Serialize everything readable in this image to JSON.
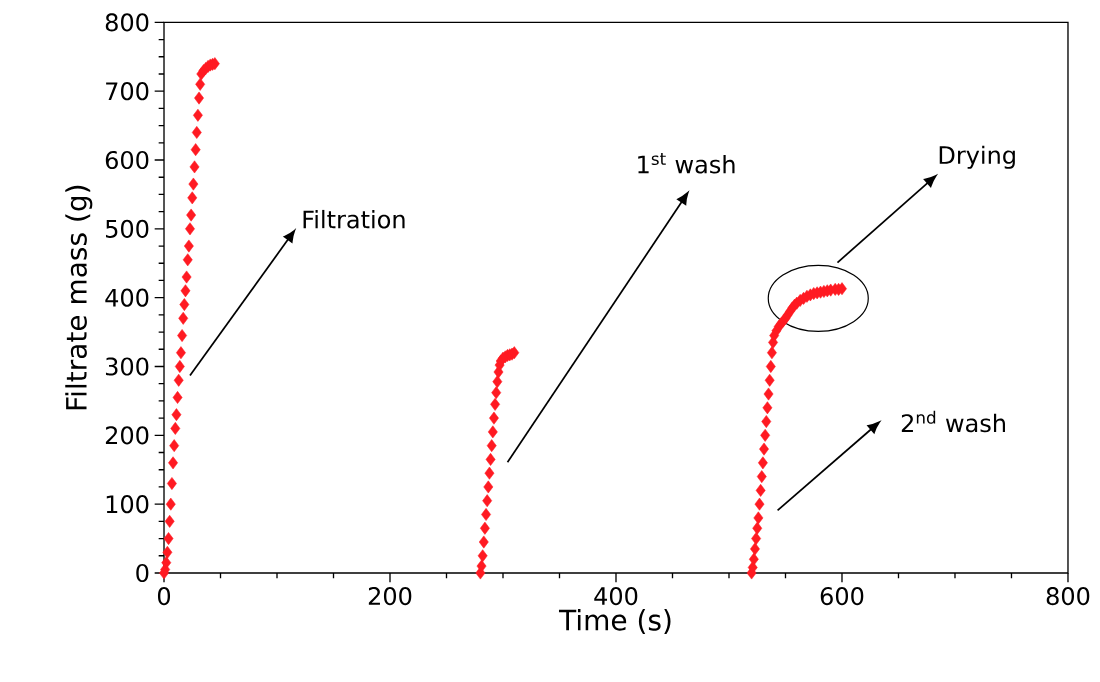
{
  "chart_data": {
    "type": "scatter",
    "xlabel": "Time (s)",
    "ylabel": "Filtrate mass (g)",
    "xlim": [
      0,
      800
    ],
    "ylim": [
      0,
      800
    ],
    "xticks": [
      0,
      200,
      400,
      600,
      800
    ],
    "yticks": [
      0,
      100,
      200,
      300,
      400,
      500,
      600,
      700,
      800
    ],
    "grid": false,
    "marker": "diamond",
    "series": [
      {
        "color": "#ff1a22",
        "x": [
          0,
          1,
          2,
          3,
          4,
          5,
          6,
          7,
          8,
          9,
          10,
          11,
          12,
          13,
          14,
          15,
          16,
          17,
          18,
          19,
          20,
          21,
          22,
          23,
          24,
          25,
          26,
          27,
          28,
          29,
          30,
          31,
          32,
          33,
          35,
          37,
          39,
          41,
          43,
          45,
          280,
          281,
          282,
          283,
          284,
          285,
          286,
          287,
          288,
          289,
          290,
          291,
          292,
          293,
          294,
          295,
          296,
          297,
          298,
          300,
          302,
          304,
          306,
          308,
          310,
          520,
          521,
          522,
          523,
          524,
          525,
          526,
          527,
          528,
          529,
          530,
          531,
          532,
          533,
          534,
          535,
          536,
          537,
          538,
          539,
          540,
          542,
          544,
          546,
          548,
          550,
          552,
          554,
          556,
          558,
          560,
          563,
          566,
          569,
          572,
          575,
          578,
          581,
          584,
          587,
          590,
          594,
          597,
          600
        ],
        "values": [
          0,
          5,
          15,
          30,
          50,
          75,
          100,
          130,
          160,
          185,
          210,
          230,
          255,
          280,
          300,
          320,
          345,
          370,
          390,
          410,
          430,
          455,
          475,
          500,
          520,
          545,
          565,
          590,
          615,
          640,
          665,
          690,
          710,
          725,
          730,
          733,
          736,
          738,
          739,
          740,
          0,
          10,
          25,
          45,
          65,
          85,
          105,
          125,
          145,
          165,
          185,
          205,
          225,
          245,
          262,
          278,
          292,
          302,
          308,
          312,
          314,
          316,
          317,
          318,
          320,
          0,
          8,
          20,
          35,
          50,
          65,
          80,
          100,
          120,
          140,
          160,
          180,
          200,
          220,
          240,
          260,
          280,
          300,
          320,
          335,
          345,
          352,
          358,
          362,
          366,
          370,
          375,
          380,
          385,
          389,
          392,
          396,
          399,
          402,
          404,
          406,
          407,
          408,
          409,
          410,
          411,
          412,
          412,
          413
        ]
      }
    ],
    "annotations": [
      "Filtration",
      "1$^{st}$ wash",
      "Drying",
      "2$^{nd}$ wash"
    ]
  }
}
